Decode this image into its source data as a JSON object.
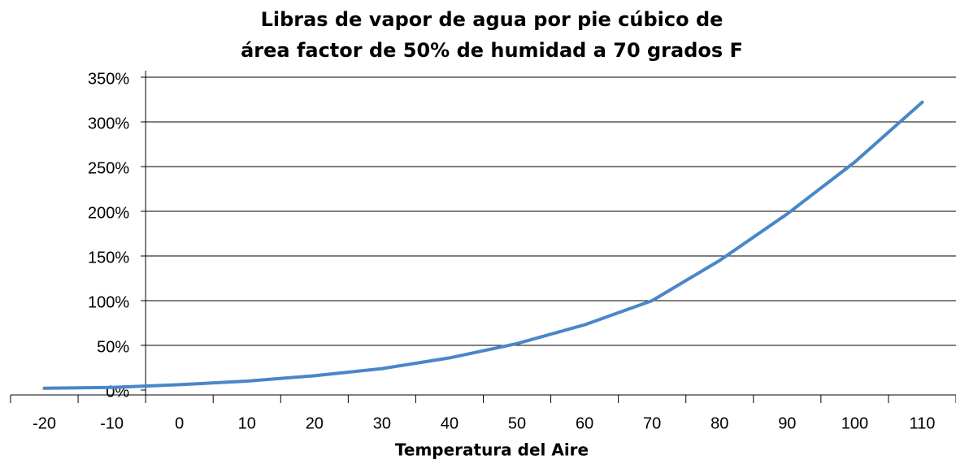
{
  "chart_data": {
    "type": "line",
    "title": [
      "Libras de vapor de agua por pie cúbico de",
      "área factor de 50% de humidad a 70 grados F"
    ],
    "x_label": "Temperatura del Aire",
    "categories": [
      "-20",
      "-10",
      "0",
      "10",
      "20",
      "30",
      "40",
      "50",
      "60",
      "70",
      "80",
      "90",
      "100",
      "110"
    ],
    "series": [
      {
        "name": "Libras de vapor de agua",
        "color": "#4a86c8",
        "values": [
          2,
          3,
          6,
          10,
          16,
          24,
          36,
          52,
          73,
          100,
          145,
          197,
          255,
          322
        ]
      }
    ],
    "ylim": [
      0,
      350
    ],
    "yticks": [
      {
        "value": 0,
        "label": "0%"
      },
      {
        "value": 50,
        "label": "50%"
      },
      {
        "value": 100,
        "label": "100%"
      },
      {
        "value": 150,
        "label": "150%"
      },
      {
        "value": 200,
        "label": "200%"
      },
      {
        "value": 250,
        "label": "250%"
      },
      {
        "value": 300,
        "label": "300%"
      },
      {
        "value": 350,
        "label": "350%"
      }
    ],
    "grid": true
  }
}
